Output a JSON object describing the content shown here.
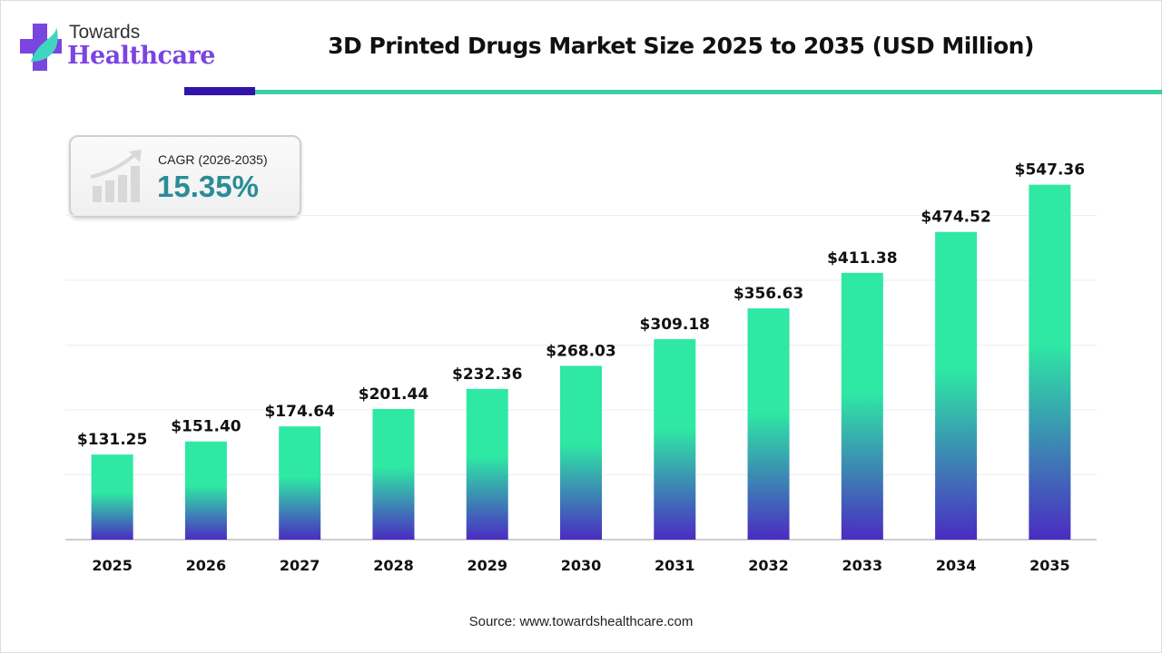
{
  "brand": {
    "line1": "Towards",
    "line2": "Healthcare"
  },
  "header": {
    "title": "3D Printed Drugs Market Size 2025 to 2035 (USD Million)"
  },
  "cagr": {
    "label": "CAGR (2026-2035)",
    "value": "15.35%",
    "icon": "growth-chart-icon"
  },
  "source": "Source: www.towardshealthcare.com",
  "colors": {
    "bar_top": "#2ee8a4",
    "bar_bottom": "#4a2cc2",
    "accent_dark": "#3214a8",
    "accent_teal": "#3ccfa5",
    "cagr_text": "#2a8c96"
  },
  "chart_data": {
    "type": "bar",
    "title": "3D Printed Drugs Market Size 2025 to 2035 (USD Million)",
    "categories": [
      "2025",
      "2026",
      "2027",
      "2028",
      "2029",
      "2030",
      "2031",
      "2032",
      "2033",
      "2034",
      "2035"
    ],
    "values": [
      131.25,
      151.4,
      174.64,
      201.44,
      232.36,
      268.03,
      309.18,
      356.63,
      411.38,
      474.52,
      547.36
    ],
    "labels": [
      "$131.25",
      "$151.40",
      "$174.64",
      "$201.44",
      "$232.36",
      "$268.03",
      "$309.18",
      "$356.63",
      "$411.38",
      "$474.52",
      "$547.36"
    ],
    "ylim": [
      0,
      600
    ],
    "grid": true,
    "xlabel": "",
    "ylabel": ""
  }
}
